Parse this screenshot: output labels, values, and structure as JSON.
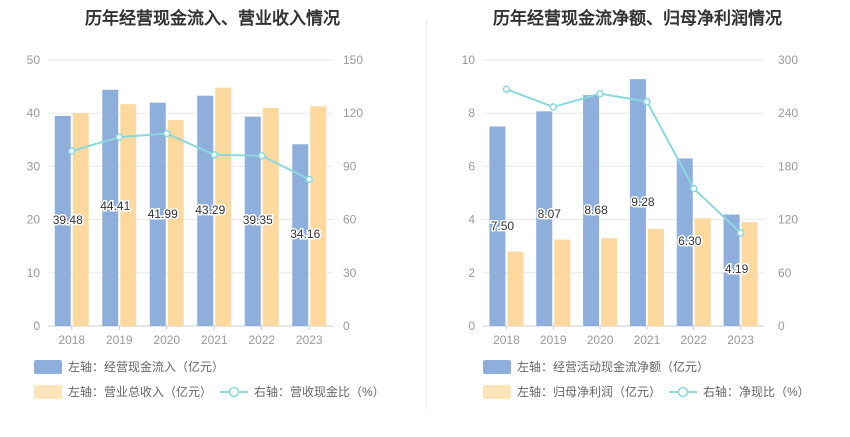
{
  "colors": {
    "bar1": "#8eaedb",
    "bar2": "#fdd9a0",
    "line": "#8ad9de",
    "axis": "#999999",
    "grid": "#e8e8e8",
    "label": "#333333"
  },
  "left": {
    "title": "历年经营现金流入、营业收入情况",
    "legend": {
      "item1": "左轴：经营现金流入（亿元）",
      "item2": "左轴：营业总收入（亿元）",
      "item3": "右轴：营收现金比（%）"
    }
  },
  "right": {
    "title": "历年经营现金流净额、归母净利润情况",
    "legend": {
      "item1": "左轴：经营活动现金流净额（亿元）",
      "item2": "左轴：归母净利润（亿元）",
      "item3": "右轴：净现比（%）"
    }
  },
  "chart_data": [
    {
      "type": "bar",
      "title": "历年经营现金流入、营业收入情况",
      "categories": [
        "2018",
        "2019",
        "2020",
        "2021",
        "2022",
        "2023"
      ],
      "series": [
        {
          "name": "左轴：经营现金流入（亿元）",
          "axis": "left",
          "type": "bar",
          "values": [
            39.48,
            44.41,
            41.99,
            43.29,
            39.35,
            34.16
          ],
          "labels": [
            "39.48",
            "44.41",
            "41.99",
            "43.29",
            "39.35",
            "34.16"
          ]
        },
        {
          "name": "左轴：营业总收入（亿元）",
          "axis": "left",
          "type": "bar",
          "values": [
            40.0,
            41.7,
            38.7,
            44.8,
            41.0,
            41.3
          ]
        },
        {
          "name": "右轴：营收现金比（%）",
          "axis": "right",
          "type": "line",
          "values": [
            98.7,
            106.5,
            108.5,
            96.6,
            96.0,
            82.7
          ]
        }
      ],
      "ylim_left": [
        0,
        50
      ],
      "yticks_left": [
        "0",
        "10",
        "20",
        "30",
        "40",
        "50"
      ],
      "ylim_right": [
        0,
        150
      ],
      "yticks_right": [
        "0",
        "30",
        "60",
        "90",
        "120",
        "150"
      ],
      "grid": true,
      "legend_position": "bottom"
    },
    {
      "type": "bar",
      "title": "历年经营现金流净额、归母净利润情况",
      "categories": [
        "2018",
        "2019",
        "2020",
        "2021",
        "2022",
        "2023"
      ],
      "series": [
        {
          "name": "左轴：经营活动现金流净额（亿元）",
          "axis": "left",
          "type": "bar",
          "values": [
            7.5,
            8.07,
            8.68,
            9.28,
            6.3,
            4.19
          ],
          "labels": [
            "7.50",
            "8.07",
            "8.68",
            "9.28",
            "6.30",
            "4.19"
          ]
        },
        {
          "name": "左轴：归母净利润（亿元）",
          "axis": "left",
          "type": "bar",
          "values": [
            2.8,
            3.25,
            3.3,
            3.65,
            4.05,
            3.9
          ]
        },
        {
          "name": "右轴：净现比（%）",
          "axis": "right",
          "type": "line",
          "values": [
            267,
            247,
            262,
            253,
            155,
            105
          ]
        }
      ],
      "ylim_left": [
        0,
        10
      ],
      "yticks_left": [
        "0",
        "2",
        "4",
        "6",
        "8",
        "10"
      ],
      "ylim_right": [
        0,
        300
      ],
      "yticks_right": [
        "0",
        "60",
        "120",
        "180",
        "240",
        "300"
      ],
      "grid": true,
      "legend_position": "bottom"
    }
  ]
}
